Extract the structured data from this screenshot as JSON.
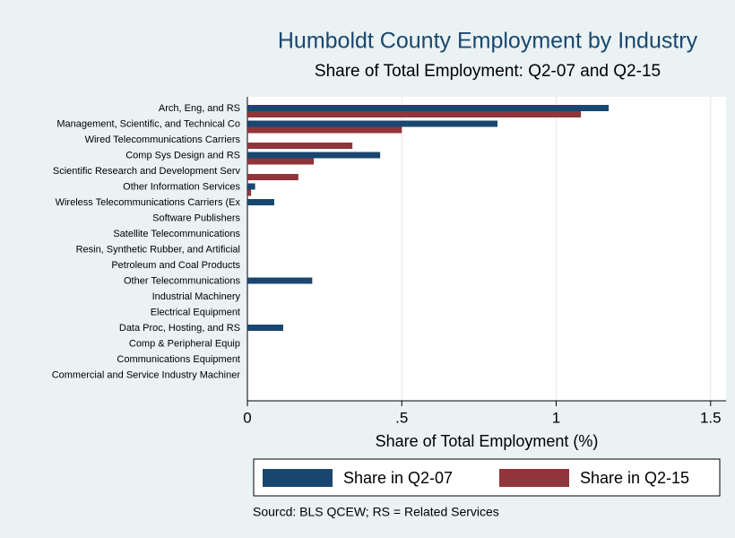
{
  "chart_data": {
    "type": "bar",
    "orientation": "horizontal",
    "title": "Humboldt County Employment by Industry",
    "subtitle": "Share of Total Employment: Q2-07 and Q2-15",
    "x_label": "Share of Total Employment (%)",
    "note": "Sourcd: BLS QCEW; RS = Related Services",
    "categories": [
      "Arch, Eng, and RS",
      "Management, Scientific, and Technical Co",
      "Wired Telecommunications Carriers",
      "Comp Sys Design and RS",
      "Scientific Research and Development Serv",
      "Other Information Services",
      "Wireless Telecommunications Carriers (Ex",
      "Software Publishers",
      "Satellite Telecommunications",
      "Resin, Synthetic Rubber, and Artificial",
      "Petroleum and Coal Products",
      "Other Telecommunications",
      "Industrial Machinery",
      "Electrical Equipment",
      "Data Proc, Hosting, and RS",
      "Comp & Peripheral Equip",
      "Communications Equipment",
      "Commercial and Service Industry Machiner"
    ],
    "series": [
      {
        "name": "Share in Q2-07",
        "color": "#1a476f",
        "values": [
          1.17,
          0.81,
          0,
          0.43,
          0,
          0.025,
          0.087,
          0,
          0,
          0,
          0,
          0.21,
          0,
          0,
          0.116,
          0,
          0,
          0
        ]
      },
      {
        "name": "Share in Q2-15",
        "color": "#90353b",
        "values": [
          1.08,
          0.5,
          0.34,
          0.215,
          0.165,
          0.012,
          0,
          0,
          0,
          0,
          0,
          0,
          0,
          0,
          0,
          0,
          0,
          0
        ]
      }
    ],
    "xlim": [
      0,
      1.55
    ],
    "xticks": [
      0,
      {
        "value": 0.5,
        "label": ".5"
      },
      1,
      1.5
    ],
    "grid": true,
    "legend": "bottom"
  }
}
